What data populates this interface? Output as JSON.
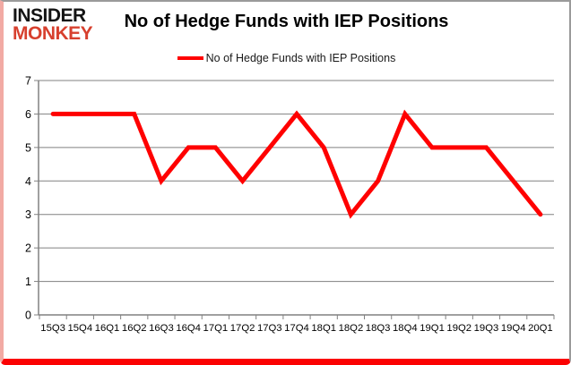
{
  "logo": {
    "line1": "INSIDER",
    "line2": "MONKEY"
  },
  "header": {
    "title": "No of Hedge Funds with IEP Positions"
  },
  "legend": {
    "label": "No of Hedge Funds with IEP Positions",
    "swatch_color": "#ff0000"
  },
  "colors": {
    "series_line": "#ff0000",
    "gridline": "#808080",
    "axis_text": "#000000",
    "logo_red": "#d7402e",
    "frame_bottom": "#fb0202"
  },
  "chart_data": {
    "type": "line",
    "title": "No of Hedge Funds with IEP Positions",
    "categories": [
      "15Q3",
      "15Q4",
      "16Q1",
      "16Q2",
      "16Q3",
      "16Q4",
      "17Q1",
      "17Q2",
      "17Q3",
      "17Q4",
      "18Q1",
      "18Q2",
      "18Q3",
      "18Q4",
      "19Q1",
      "19Q2",
      "19Q3",
      "19Q4",
      "20Q1"
    ],
    "series": [
      {
        "name": "No of Hedge Funds with IEP Positions",
        "color": "#ff0000",
        "values": [
          6,
          6,
          6,
          6,
          4,
          5,
          5,
          4,
          5,
          6,
          5,
          3,
          4,
          6,
          5,
          5,
          5,
          4,
          3
        ]
      }
    ],
    "xlabel": "",
    "ylabel": "",
    "ylim": [
      0,
      7
    ],
    "yticks": [
      0,
      1,
      2,
      3,
      4,
      5,
      6,
      7
    ],
    "grid": true,
    "legend_position": "top"
  }
}
